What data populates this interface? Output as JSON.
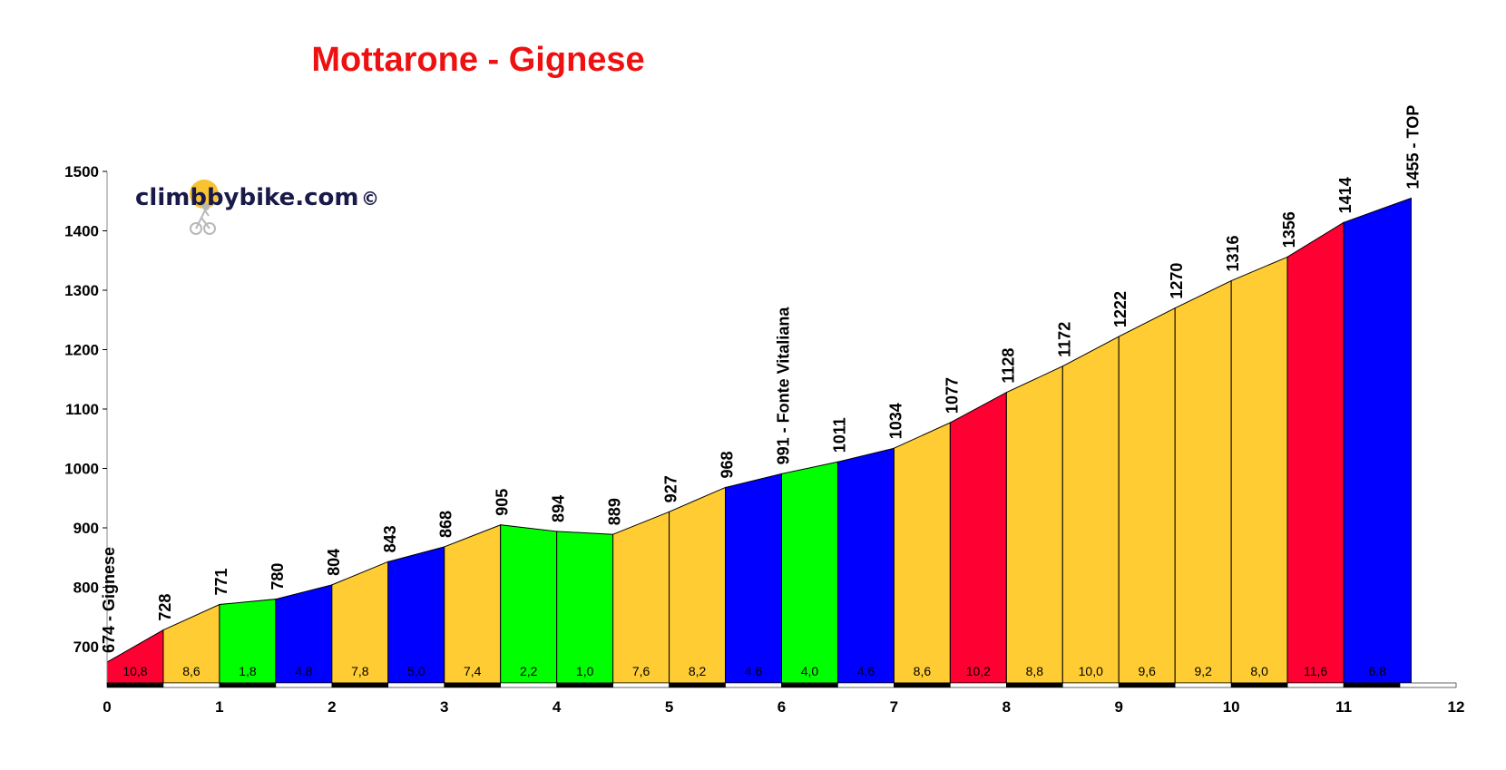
{
  "header": {
    "title": "Mottarone - Gignese"
  },
  "watermark": {
    "text": "climbbybike.com",
    "copyright": "©"
  },
  "colors": {
    "title": "#ee1111",
    "very_hard": "#ff0033",
    "hard": "#0000ff",
    "moderate": "#ffcc33",
    "easy": "#00ff00",
    "logo_sun": "#f7c331"
  },
  "chart_data": {
    "type": "area",
    "title": "Mottarone - Gignese",
    "xlabel": "",
    "ylabel": "",
    "xlim": [
      0,
      12
    ],
    "ylim": [
      635,
      1500
    ],
    "x_ticks": [
      0,
      1,
      2,
      3,
      4,
      5,
      6,
      7,
      8,
      9,
      10,
      11,
      12
    ],
    "y_ticks": [
      700,
      800,
      900,
      1000,
      1100,
      1200,
      1300,
      1400,
      1500
    ],
    "x": [
      0,
      0.5,
      1,
      1.5,
      2,
      2.5,
      3,
      3.5,
      4,
      4.5,
      5,
      5.5,
      6,
      6.5,
      7,
      7.5,
      8,
      8.5,
      9,
      9.5,
      10,
      10.5,
      11,
      11.6
    ],
    "elevations": [
      674,
      728,
      771,
      780,
      804,
      843,
      868,
      905,
      894,
      889,
      927,
      968,
      991,
      1011,
      1034,
      1077,
      1128,
      1172,
      1222,
      1270,
      1316,
      1356,
      1414,
      1455
    ],
    "point_labels": [
      "674 - Gignese",
      "728",
      "771",
      "780",
      "804",
      "843",
      "868",
      "905",
      "894",
      "889",
      "927",
      "968",
      "991 - Fonte Vitaliana",
      "1011",
      "1034",
      "1077",
      "1128",
      "1172",
      "1222",
      "1270",
      "1316",
      "1356",
      "1414",
      "1455 - TOP"
    ],
    "gradients": [
      "10,8",
      "8,6",
      "1,8",
      "4,8",
      "7,8",
      "5,0",
      "7,4",
      "2,2",
      "1,0",
      "7,6",
      "8,2",
      "4,6",
      "4,0",
      "4,6",
      "8,6",
      "10,2",
      "8,8",
      "10,0",
      "9,6",
      "9,2",
      "8,0",
      "11,6",
      "6,8"
    ],
    "segment_colors": [
      "very_hard",
      "moderate",
      "easy",
      "hard",
      "moderate",
      "hard",
      "moderate",
      "easy",
      "easy",
      "moderate",
      "moderate",
      "hard",
      "easy",
      "hard",
      "moderate",
      "very_hard",
      "moderate",
      "moderate",
      "moderate",
      "moderate",
      "moderate",
      "very_hard",
      "hard"
    ],
    "grid": false,
    "legend": "none"
  }
}
